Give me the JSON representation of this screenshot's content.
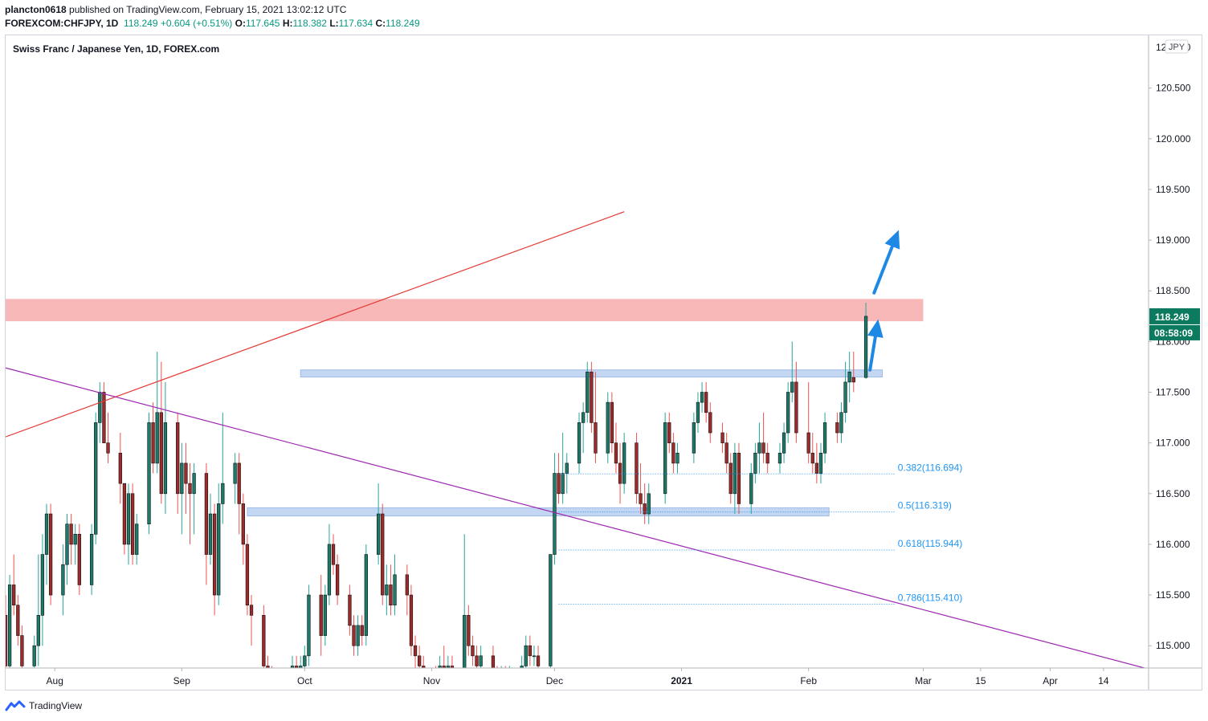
{
  "header": {
    "publisher": "plancton0618",
    "published_text": "published on TradingView.com, February 15, 2021 13:02:12 UTC",
    "symbol": "FOREXCOM:CHFJPY, 1D",
    "last": "118.249",
    "change": "+0.604 (+0.51%)",
    "o_label": "O:",
    "o_value": "117.645",
    "h_label": "H:",
    "h_value": "118.382",
    "l_label": "L:",
    "l_value": "117.634",
    "c_label": "C:",
    "c_value": "118.249"
  },
  "footer": {
    "brand": "TradingView"
  },
  "colors": {
    "up": "#26a69a",
    "down": "#ef5350",
    "body_up": "#1b7a6a",
    "body_down": "#9e2a2a",
    "resistance_zone": "#f8b4b4",
    "support_zone": "#b8cff0",
    "red_line": "#e53935",
    "purple_line": "#9c27b0",
    "fib": "#2196f3",
    "arrow": "#1e88e5",
    "price_badge": "#0b7a5e"
  },
  "chart_data": {
    "type": "candlestick",
    "title": "Swiss Franc / Japanese Yen, 1D, FOREX.com",
    "currency_badge": "JPY",
    "current_price": "118.249",
    "countdown": "08:58:09",
    "ylim": [
      114.78,
      121.02
    ],
    "y_ticks": [
      "120.500",
      "120.000",
      "119.500",
      "119.000",
      "118.500",
      "118.000",
      "117.500",
      "117.000",
      "116.500",
      "116.000",
      "115.500",
      "115.000"
    ],
    "y_tick_values": [
      120.5,
      120.0,
      119.5,
      119.0,
      118.5,
      118.0,
      117.5,
      117.0,
      116.5,
      116.0,
      115.5,
      115.0
    ],
    "y_top_label": "121.000",
    "x_ticks": [
      {
        "label": "Aug",
        "date": "2020-08-01",
        "bold": false
      },
      {
        "label": "Sep",
        "date": "2020-09-01",
        "bold": false
      },
      {
        "label": "Oct",
        "date": "2020-10-01",
        "bold": false
      },
      {
        "label": "Nov",
        "date": "2020-11-01",
        "bold": false
      },
      {
        "label": "Dec",
        "date": "2020-12-01",
        "bold": false
      },
      {
        "label": "2021",
        "date": "2021-01-01",
        "bold": true
      },
      {
        "label": "Feb",
        "date": "2021-02-01",
        "bold": false
      },
      {
        "label": "Mar",
        "date": "2021-03-01",
        "bold": false
      },
      {
        "label": "15",
        "date": "2021-03-15",
        "bold": false
      },
      {
        "label": "Apr",
        "date": "2021-04-01",
        "bold": false
      },
      {
        "label": "14",
        "date": "2021-04-14",
        "bold": false
      }
    ],
    "x_range": [
      "2020-07-20",
      "2021-04-25"
    ],
    "candles": [
      [
        "2020-07-20",
        115.3,
        115.5,
        114.6,
        114.8
      ],
      [
        "2020-07-21",
        114.8,
        115.7,
        114.6,
        115.6
      ],
      [
        "2020-07-22",
        115.6,
        115.9,
        115.3,
        115.4
      ],
      [
        "2020-07-23",
        115.4,
        115.5,
        115.0,
        115.1
      ],
      [
        "2020-07-24",
        115.1,
        115.2,
        114.6,
        114.8
      ],
      [
        "2020-07-27",
        114.8,
        115.1,
        114.6,
        115.0
      ],
      [
        "2020-07-28",
        115.0,
        115.9,
        114.8,
        115.3
      ],
      [
        "2020-07-29",
        115.3,
        116.1,
        115.0,
        115.9
      ],
      [
        "2020-07-30",
        115.9,
        116.4,
        115.6,
        116.3
      ],
      [
        "2020-07-31",
        116.3,
        116.4,
        115.4,
        115.5
      ],
      [
        "2020-08-03",
        115.5,
        116.0,
        115.3,
        115.8
      ],
      [
        "2020-08-04",
        115.8,
        116.3,
        115.6,
        116.2
      ],
      [
        "2020-08-05",
        116.2,
        116.3,
        115.8,
        116.0
      ],
      [
        "2020-08-06",
        116.0,
        116.2,
        115.8,
        116.1
      ],
      [
        "2020-08-07",
        116.1,
        116.2,
        115.5,
        115.6
      ],
      [
        "2020-08-10",
        115.6,
        116.2,
        115.5,
        116.1
      ],
      [
        "2020-08-11",
        116.1,
        117.3,
        116.0,
        117.2
      ],
      [
        "2020-08-12",
        117.2,
        117.6,
        117.0,
        117.5
      ],
      [
        "2020-08-13",
        117.5,
        117.6,
        117.0,
        117.0
      ],
      [
        "2020-08-14",
        117.0,
        117.3,
        116.8,
        116.9
      ],
      [
        "2020-08-17",
        116.9,
        117.1,
        116.4,
        116.6
      ],
      [
        "2020-08-18",
        116.6,
        116.6,
        115.9,
        116.0
      ],
      [
        "2020-08-19",
        116.0,
        116.6,
        115.8,
        116.5
      ],
      [
        "2020-08-20",
        116.5,
        116.6,
        115.8,
        115.9
      ],
      [
        "2020-08-21",
        115.9,
        116.3,
        115.8,
        116.2
      ],
      [
        "2020-08-24",
        116.2,
        117.3,
        116.1,
        117.2
      ],
      [
        "2020-08-25",
        117.2,
        117.4,
        116.7,
        116.8
      ],
      [
        "2020-08-26",
        116.8,
        117.9,
        116.7,
        117.3
      ],
      [
        "2020-08-27",
        117.3,
        117.8,
        116.4,
        116.5
      ],
      [
        "2020-08-28",
        116.5,
        117.6,
        116.3,
        117.2
      ],
      [
        "2020-08-31",
        117.2,
        117.3,
        116.3,
        116.5
      ],
      [
        "2020-09-01",
        116.5,
        117.0,
        116.1,
        116.8
      ],
      [
        "2020-09-02",
        116.8,
        117.0,
        116.3,
        116.6
      ],
      [
        "2020-09-03",
        116.6,
        116.8,
        116.0,
        116.5
      ],
      [
        "2020-09-04",
        116.5,
        116.8,
        116.1,
        116.7
      ],
      [
        "2020-09-07",
        116.7,
        116.8,
        115.6,
        115.9
      ],
      [
        "2020-09-08",
        115.9,
        116.5,
        115.8,
        116.3
      ],
      [
        "2020-09-09",
        116.3,
        116.4,
        115.3,
        115.5
      ],
      [
        "2020-09-10",
        115.5,
        116.6,
        115.4,
        116.4
      ],
      [
        "2020-09-11",
        116.4,
        117.3,
        116.2,
        116.6
      ],
      [
        "2020-09-14",
        116.6,
        116.9,
        116.4,
        116.8
      ],
      [
        "2020-09-15",
        116.8,
        116.9,
        116.1,
        116.4
      ],
      [
        "2020-09-16",
        116.4,
        116.5,
        115.8,
        116.0
      ],
      [
        "2020-09-17",
        116.0,
        116.1,
        115.3,
        115.4
      ],
      [
        "2020-09-18",
        115.4,
        115.5,
        115.0,
        115.3
      ],
      [
        "2020-09-21",
        115.3,
        115.4,
        114.7,
        114.8
      ],
      [
        "2020-09-22",
        114.8,
        114.9,
        114.6,
        114.7
      ],
      [
        "2020-09-23",
        114.7,
        114.8,
        114.5,
        114.6
      ],
      [
        "2020-09-24",
        114.6,
        114.7,
        114.3,
        114.4
      ],
      [
        "2020-09-25",
        114.4,
        114.6,
        114.3,
        114.5
      ],
      [
        "2020-09-28",
        114.5,
        114.9,
        114.4,
        114.8
      ],
      [
        "2020-09-29",
        114.8,
        114.9,
        114.6,
        114.7
      ],
      [
        "2020-09-30",
        114.7,
        114.9,
        114.6,
        114.8
      ],
      [
        "2020-10-01",
        114.8,
        115.0,
        114.7,
        114.9
      ],
      [
        "2020-10-02",
        114.9,
        115.6,
        114.8,
        115.5
      ],
      [
        "2020-10-05",
        115.5,
        115.7,
        114.9,
        115.1
      ],
      [
        "2020-10-06",
        115.1,
        115.6,
        115.0,
        115.5
      ],
      [
        "2020-10-07",
        115.5,
        116.2,
        115.4,
        116.0
      ],
      [
        "2020-10-08",
        116.0,
        116.1,
        115.7,
        115.8
      ],
      [
        "2020-10-09",
        115.8,
        115.9,
        115.4,
        115.5
      ],
      [
        "2020-10-12",
        115.5,
        115.6,
        115.1,
        115.2
      ],
      [
        "2020-10-13",
        115.2,
        115.3,
        114.9,
        115.0
      ],
      [
        "2020-10-14",
        115.0,
        115.3,
        114.9,
        115.2
      ],
      [
        "2020-10-15",
        115.2,
        115.3,
        115.0,
        115.1
      ],
      [
        "2020-10-16",
        115.1,
        116.0,
        115.0,
        115.9
      ],
      [
        "2020-10-19",
        115.9,
        116.6,
        115.8,
        116.3
      ],
      [
        "2020-10-20",
        116.3,
        116.4,
        115.4,
        115.5
      ],
      [
        "2020-10-21",
        115.5,
        115.8,
        115.3,
        115.6
      ],
      [
        "2020-10-22",
        115.6,
        115.8,
        115.3,
        115.4
      ],
      [
        "2020-10-23",
        115.4,
        115.9,
        115.3,
        115.7
      ],
      [
        "2020-10-26",
        115.7,
        115.8,
        115.3,
        115.5
      ],
      [
        "2020-10-27",
        115.5,
        115.6,
        114.9,
        115.0
      ],
      [
        "2020-10-28",
        115.0,
        115.1,
        114.7,
        114.9
      ],
      [
        "2020-10-29",
        114.9,
        115.0,
        114.6,
        114.8
      ],
      [
        "2020-10-30",
        114.8,
        114.9,
        114.6,
        114.7
      ],
      [
        "2020-11-02",
        114.7,
        114.8,
        114.5,
        114.6
      ],
      [
        "2020-11-03",
        114.6,
        114.9,
        114.5,
        114.8
      ],
      [
        "2020-11-04",
        114.8,
        115.0,
        114.6,
        114.7
      ],
      [
        "2020-11-05",
        114.7,
        114.9,
        114.5,
        114.8
      ],
      [
        "2020-11-06",
        114.8,
        114.9,
        114.6,
        114.7
      ],
      [
        "2020-11-09",
        114.7,
        116.1,
        114.6,
        115.3
      ],
      [
        "2020-11-10",
        115.3,
        115.4,
        114.9,
        115.0
      ],
      [
        "2020-11-11",
        115.0,
        115.1,
        114.8,
        114.9
      ],
      [
        "2020-11-12",
        114.9,
        115.0,
        114.7,
        114.8
      ],
      [
        "2020-11-13",
        114.8,
        115.0,
        114.7,
        114.9
      ],
      [
        "2020-11-16",
        114.9,
        115.0,
        114.6,
        114.7
      ],
      [
        "2020-11-17",
        114.7,
        114.8,
        114.5,
        114.6
      ],
      [
        "2020-11-18",
        114.6,
        114.8,
        114.5,
        114.7
      ],
      [
        "2020-11-19",
        114.7,
        114.8,
        114.5,
        114.6
      ],
      [
        "2020-11-20",
        114.6,
        114.8,
        114.5,
        114.7
      ],
      [
        "2020-11-23",
        114.7,
        114.9,
        114.6,
        114.8
      ],
      [
        "2020-11-24",
        114.8,
        115.1,
        114.7,
        115.0
      ],
      [
        "2020-11-25",
        115.0,
        115.1,
        114.8,
        114.9
      ],
      [
        "2020-11-26",
        114.9,
        115.0,
        114.8,
        114.9
      ],
      [
        "2020-11-27",
        114.9,
        115.0,
        114.7,
        114.8
      ],
      [
        "2020-11-30",
        114.8,
        115.9,
        114.7,
        115.9
      ],
      [
        "2020-12-01",
        115.9,
        116.9,
        115.8,
        116.7
      ],
      [
        "2020-12-02",
        116.7,
        116.9,
        116.4,
        116.5
      ],
      [
        "2020-12-03",
        116.5,
        117.1,
        116.4,
        116.7
      ],
      [
        "2020-12-04",
        116.7,
        116.9,
        116.5,
        116.8
      ],
      [
        "2020-12-07",
        116.8,
        117.3,
        116.7,
        117.2
      ],
      [
        "2020-12-08",
        117.2,
        117.4,
        116.9,
        117.3
      ],
      [
        "2020-12-09",
        117.3,
        117.8,
        117.2,
        117.7
      ],
      [
        "2020-12-10",
        117.7,
        117.8,
        117.1,
        117.2
      ],
      [
        "2020-12-11",
        117.2,
        117.7,
        116.8,
        116.9
      ],
      [
        "2020-12-14",
        116.9,
        117.5,
        116.8,
        117.4
      ],
      [
        "2020-12-15",
        117.4,
        117.5,
        116.9,
        117.0
      ],
      [
        "2020-12-16",
        117.0,
        117.2,
        116.7,
        116.8
      ],
      [
        "2020-12-17",
        116.8,
        117.0,
        116.4,
        116.6
      ],
      [
        "2020-12-18",
        116.6,
        117.1,
        116.5,
        117.0
      ],
      [
        "2020-12-21",
        117.0,
        117.1,
        116.4,
        116.5
      ],
      [
        "2020-12-22",
        116.5,
        116.8,
        116.3,
        116.4
      ],
      [
        "2020-12-23",
        116.4,
        116.6,
        116.2,
        116.3
      ],
      [
        "2020-12-24",
        116.3,
        116.6,
        116.2,
        116.5
      ],
      [
        "2020-12-28",
        116.5,
        117.3,
        116.4,
        117.2
      ],
      [
        "2020-12-29",
        117.2,
        117.3,
        116.9,
        117.0
      ],
      [
        "2020-12-30",
        117.0,
        117.1,
        116.7,
        116.8
      ],
      [
        "2020-12-31",
        116.8,
        117.0,
        116.7,
        116.9
      ],
      [
        "2021-01-04",
        116.9,
        117.3,
        116.8,
        117.2
      ],
      [
        "2021-01-05",
        117.2,
        117.5,
        117.1,
        117.4
      ],
      [
        "2021-01-06",
        117.4,
        117.6,
        117.3,
        117.5
      ],
      [
        "2021-01-07",
        117.5,
        117.6,
        117.2,
        117.3
      ],
      [
        "2021-01-08",
        117.3,
        117.4,
        117.0,
        117.1
      ],
      [
        "2021-01-11",
        117.1,
        117.2,
        116.9,
        117.0
      ],
      [
        "2021-01-12",
        117.0,
        117.1,
        116.7,
        116.8
      ],
      [
        "2021-01-13",
        116.8,
        116.9,
        116.4,
        116.5
      ],
      [
        "2021-01-14",
        116.5,
        117.0,
        116.3,
        116.9
      ],
      [
        "2021-01-15",
        116.9,
        117.0,
        116.3,
        116.4
      ],
      [
        "2021-01-18",
        116.4,
        116.8,
        116.3,
        116.7
      ],
      [
        "2021-01-19",
        116.7,
        117.0,
        116.6,
        116.9
      ],
      [
        "2021-01-20",
        116.9,
        117.2,
        116.7,
        117.0
      ],
      [
        "2021-01-21",
        117.0,
        117.3,
        116.8,
        116.9
      ],
      [
        "2021-01-22",
        116.9,
        117.0,
        116.7,
        116.8
      ],
      [
        "2021-01-25",
        116.8,
        117.0,
        116.7,
        116.9
      ],
      [
        "2021-01-26",
        116.9,
        117.2,
        116.8,
        117.1
      ],
      [
        "2021-01-27",
        117.1,
        117.6,
        117.0,
        117.5
      ],
      [
        "2021-01-28",
        117.5,
        118.0,
        117.4,
        117.6
      ],
      [
        "2021-01-29",
        117.6,
        117.8,
        117.0,
        117.1
      ],
      [
        "2021-02-01",
        117.1,
        117.6,
        116.8,
        116.9
      ],
      [
        "2021-02-02",
        116.9,
        117.1,
        116.7,
        116.8
      ],
      [
        "2021-02-03",
        116.8,
        117.0,
        116.6,
        116.7
      ],
      [
        "2021-02-04",
        116.7,
        117.0,
        116.6,
        116.9
      ],
      [
        "2021-02-05",
        116.9,
        117.3,
        116.8,
        117.2
      ],
      [
        "2021-02-08",
        117.2,
        117.3,
        117.0,
        117.1
      ],
      [
        "2021-02-09",
        117.1,
        117.4,
        117.0,
        117.3
      ],
      [
        "2021-02-10",
        117.3,
        117.8,
        117.2,
        117.6
      ],
      [
        "2021-02-11",
        117.6,
        117.9,
        117.4,
        117.7
      ],
      [
        "2021-02-12",
        117.645,
        117.9,
        117.5,
        117.6
      ],
      [
        "2021-02-15",
        117.645,
        118.382,
        117.634,
        118.249
      ]
    ],
    "resistance_zone": {
      "from_date": "2020-07-20",
      "to_date": "2021-03-01",
      "low": 118.2,
      "high": 118.42
    },
    "support_zones": [
      {
        "from_date": "2020-09-30",
        "to_date": "2021-02-19",
        "low": 117.65,
        "high": 117.72
      },
      {
        "from_date": "2020-09-17",
        "to_date": "2021-02-06",
        "low": 116.28,
        "high": 116.36
      }
    ],
    "trendlines": [
      {
        "name": "red",
        "from": [
          "2020-07-20",
          117.06
        ],
        "to": [
          "2020-12-18",
          119.28
        ]
      },
      {
        "name": "purple",
        "from": [
          "2020-07-20",
          117.74
        ],
        "to": [
          "2021-04-24",
          114.78
        ]
      }
    ],
    "fib_levels": [
      {
        "label": "0.382(116.694)",
        "value": 116.694,
        "from_date": "2020-12-02",
        "to_date": "2021-02-22"
      },
      {
        "label": "0.5(116.319)",
        "value": 116.319,
        "from_date": "2020-12-02",
        "to_date": "2021-02-22"
      },
      {
        "label": "0.618(115.944)",
        "value": 115.944,
        "from_date": "2020-12-02",
        "to_date": "2021-02-22"
      },
      {
        "label": "0.786(115.410)",
        "value": 115.41,
        "from_date": "2020-12-02",
        "to_date": "2021-02-22"
      }
    ],
    "arrows": [
      {
        "from": [
          "2021-02-16",
          117.72
        ],
        "to": [
          "2021-02-18",
          118.22
        ]
      },
      {
        "from": [
          "2021-02-17",
          118.48
        ],
        "to": [
          "2021-02-23",
          119.1
        ]
      }
    ]
  }
}
